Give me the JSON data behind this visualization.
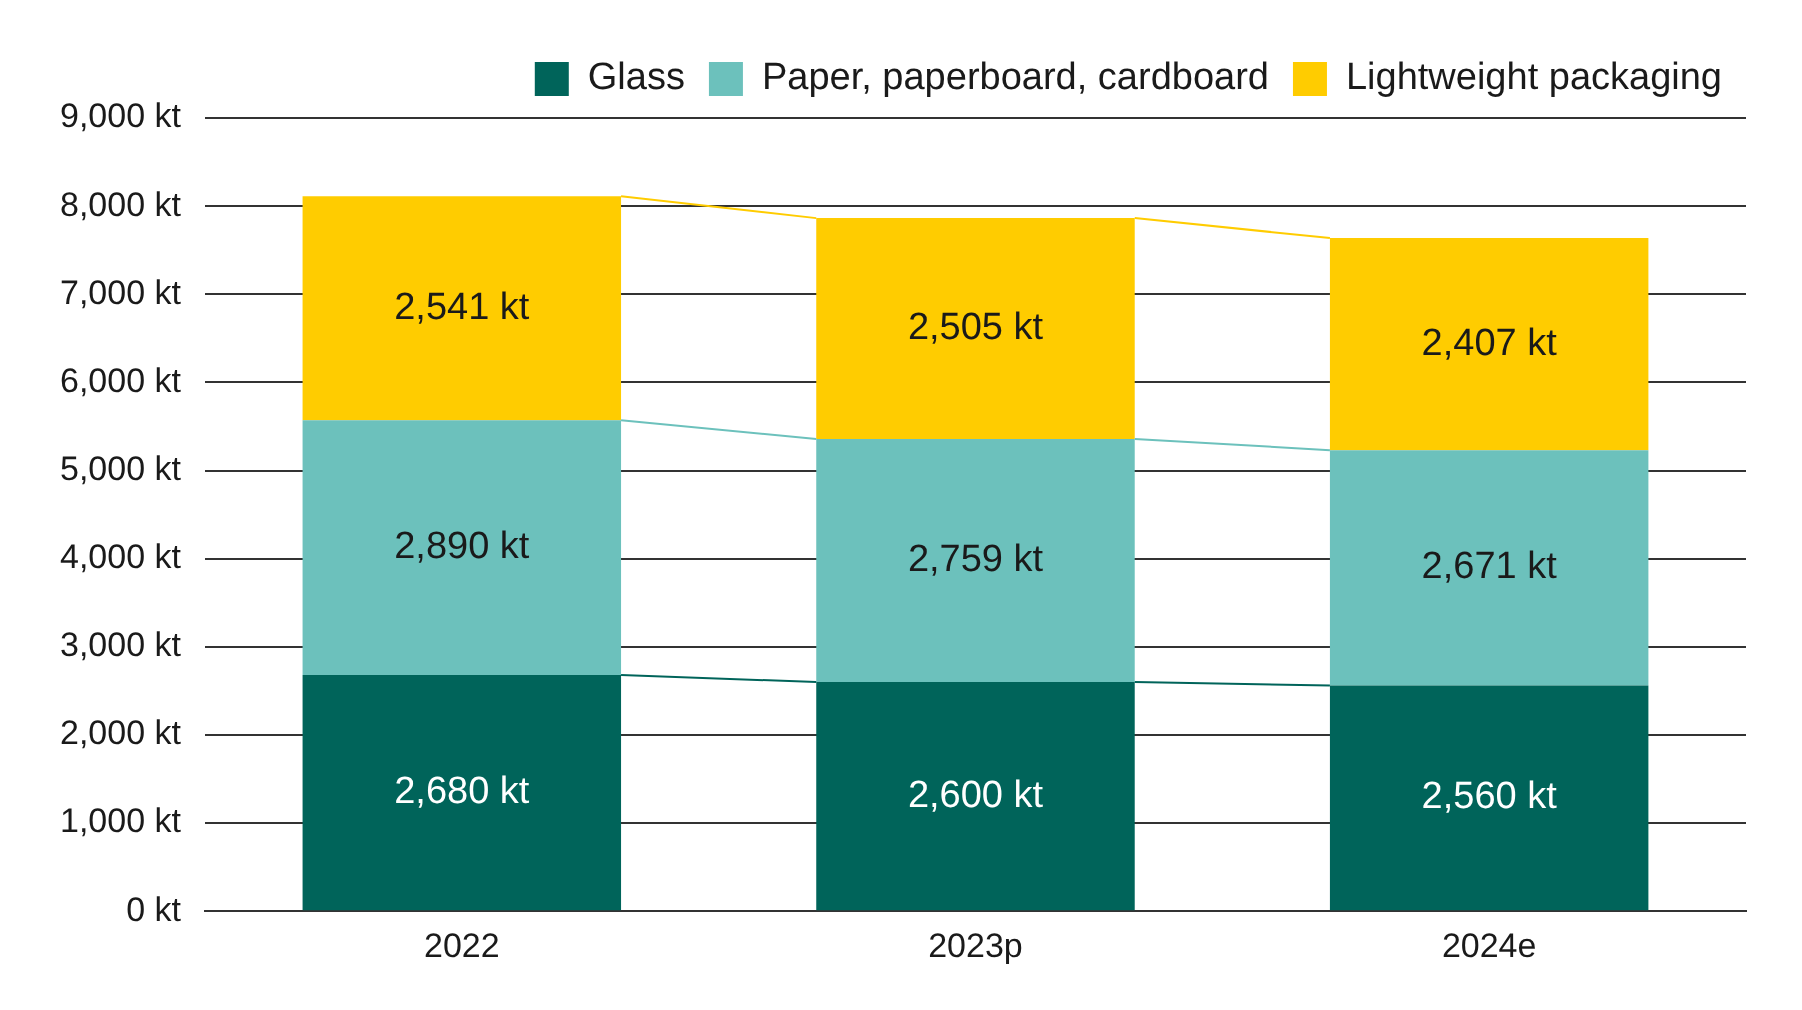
{
  "chart_data": {
    "type": "bar",
    "stacked": true,
    "categories": [
      "2022",
      "2023p",
      "2024e"
    ],
    "series": [
      {
        "name": "Glass",
        "color": "#00645a",
        "values": [
          2680,
          2600,
          2560
        ],
        "value_labels": [
          "2,680 kt",
          "2,600 kt",
          "2,560 kt"
        ]
      },
      {
        "name": "Paper, paperboard, cardboard",
        "color": "#6cc1bc",
        "values": [
          2890,
          2759,
          2671
        ],
        "value_labels": [
          "2,890 kt",
          "2,759 kt",
          "2,671 kt"
        ]
      },
      {
        "name": "Lightweight packaging",
        "color": "#ffcc00",
        "values": [
          2541,
          2505,
          2407
        ],
        "value_labels": [
          "2,541 kt",
          "2,505 kt",
          "2,407 kt"
        ]
      }
    ],
    "ylim": [
      0,
      9000
    ],
    "yticks": [
      {
        "value": 0,
        "label": "0 kt"
      },
      {
        "value": 1000,
        "label": "1,000 kt"
      },
      {
        "value": 2000,
        "label": "2,000 kt"
      },
      {
        "value": 3000,
        "label": "3,000 kt"
      },
      {
        "value": 4000,
        "label": "4,000 kt"
      },
      {
        "value": 5000,
        "label": "5,000 kt"
      },
      {
        "value": 6000,
        "label": "6,000 kt"
      },
      {
        "value": 7000,
        "label": "7,000 kt"
      },
      {
        "value": 8000,
        "label": "8,000 kt"
      },
      {
        "value": 9000,
        "label": "9,000 kt"
      }
    ],
    "grid": "y",
    "legend": "top right"
  }
}
